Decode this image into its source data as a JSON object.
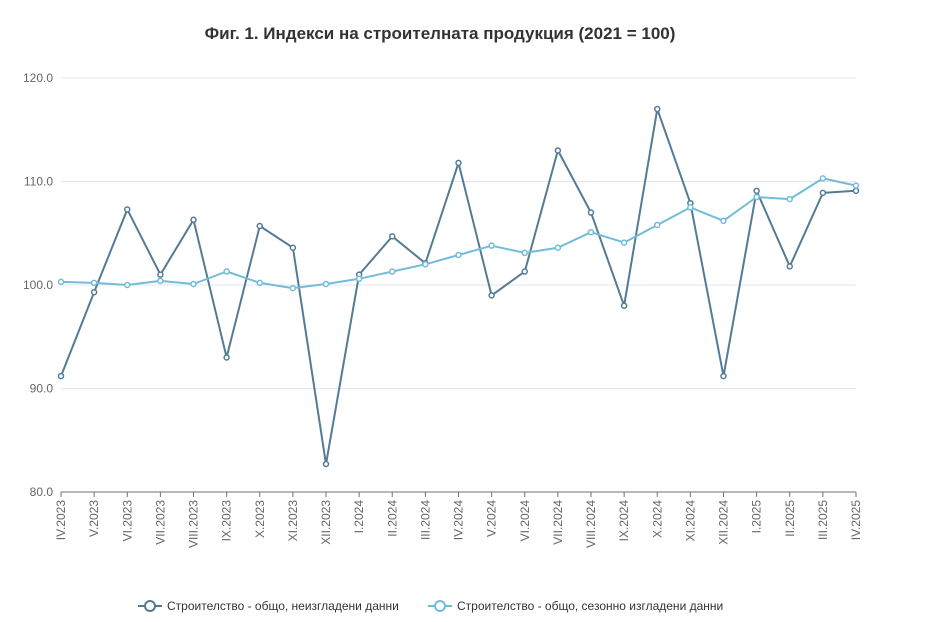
{
  "chart_data": {
    "type": "line",
    "title": "Фиг. 1. Индекси на строителната продукция (2021 = 100)",
    "xlabel": "",
    "ylabel": "",
    "ylim": [
      80,
      120
    ],
    "yticks": [
      "80.0",
      "90.0",
      "100.0",
      "110.0",
      "120.0"
    ],
    "ytick_values": [
      80,
      90,
      100,
      110,
      120
    ],
    "grid": true,
    "legend_position": "bottom",
    "categories": [
      "IV.2023",
      "V.2023",
      "VI.2023",
      "VII.2023",
      "VIII.2023",
      "IX.2023",
      "X.2023",
      "XI.2023",
      "XII.2023",
      "I.2024",
      "II.2024",
      "III.2024",
      "IV.2024",
      "V.2024",
      "VI.2024",
      "VII.2024",
      "VIII.2024",
      "IX.2024",
      "X.2024",
      "XI.2024",
      "XII.2024",
      "I.2025",
      "II.2025",
      "III.2025",
      "IV.2025"
    ],
    "series": [
      {
        "name": "Строителство - общо, неизгладени данни",
        "color": "#547b96",
        "values": [
          91.2,
          99.3,
          107.3,
          101.0,
          106.3,
          93.0,
          105.7,
          103.6,
          82.7,
          101.0,
          104.7,
          102.1,
          111.8,
          99.0,
          101.3,
          113.0,
          107.0,
          98.0,
          117.0,
          107.9,
          91.2,
          109.1,
          101.8,
          108.9,
          109.1
        ]
      },
      {
        "name": "Строителство - общо, сезонно изгладени данни",
        "color": "#73bcd9",
        "values": [
          100.3,
          100.2,
          100.0,
          100.4,
          100.1,
          101.3,
          100.2,
          99.7,
          100.1,
          100.6,
          101.3,
          102.0,
          102.9,
          103.8,
          103.1,
          103.6,
          105.1,
          104.1,
          105.8,
          107.5,
          106.2,
          108.5,
          108.3,
          110.3,
          109.6
        ]
      }
    ]
  }
}
